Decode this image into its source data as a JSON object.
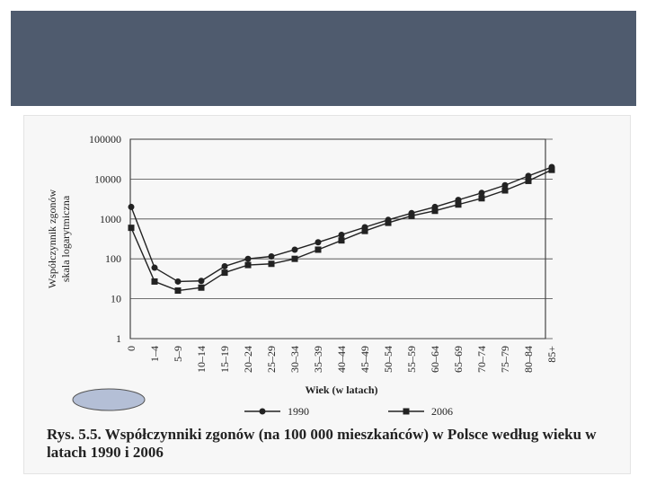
{
  "chart_data": {
    "type": "line",
    "title": "Rys. 5.5. Współczynniki zgonów (na 100 000 mieszkańców) w Polsce według wieku w latach 1990 i 2006",
    "xlabel": "Wiek (w latach)",
    "ylabel": [
      "Współczynnik zgonów",
      "skala logarytmiczna"
    ],
    "categories": [
      "0",
      "1–4",
      "5–9",
      "10–14",
      "15–19",
      "20–24",
      "25–29",
      "30–34",
      "35–39",
      "40–44",
      "45–49",
      "50–54",
      "55–59",
      "60–64",
      "65–69",
      "70–74",
      "75–79",
      "80–84",
      "85+"
    ],
    "series": [
      {
        "name": "1990",
        "color": "#222222",
        "marker": "circle",
        "values": [
          2000,
          60,
          27,
          28,
          65,
          100,
          115,
          170,
          260,
          400,
          620,
          950,
          1400,
          2000,
          3000,
          4500,
          7000,
          12000,
          20000
        ]
      },
      {
        "name": "2006",
        "color": "#222222",
        "marker": "square",
        "values": [
          600,
          27,
          16,
          19,
          45,
          70,
          75,
          100,
          170,
          290,
          500,
          800,
          1200,
          1600,
          2300,
          3300,
          5200,
          9000,
          17000
        ]
      }
    ],
    "ylim": [
      1,
      100000
    ],
    "yticks": [
      1,
      10,
      100,
      1000,
      10000,
      100000
    ],
    "log_scale": true,
    "grid": true
  }
}
